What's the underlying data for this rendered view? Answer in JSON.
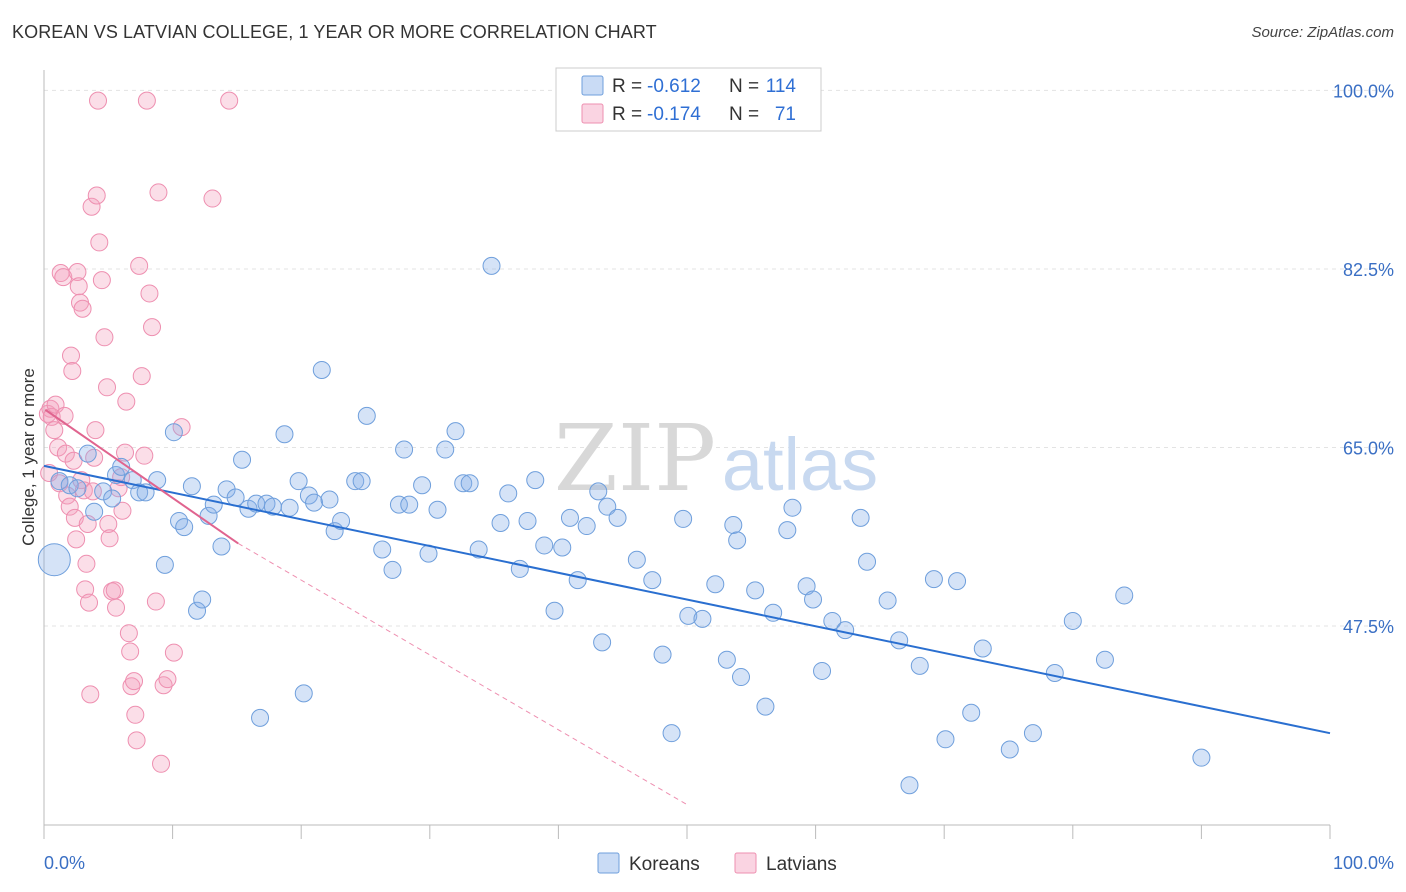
{
  "title": "KOREAN VS LATVIAN COLLEGE, 1 YEAR OR MORE CORRELATION CHART",
  "source": "Source: ZipAtlas.com",
  "watermark": {
    "zip": "ZIP",
    "atlas": "atlas"
  },
  "colors": {
    "koreans_fill": "rgba(135,176,232,0.35)",
    "koreans_stroke": "#6f9fdc",
    "koreans_line": "#2a6fd0",
    "latvians_fill": "rgba(244,160,190,0.35)",
    "latvians_stroke": "#ee8fb0",
    "latvians_line": "#e0648f",
    "axis_text": "#3a6fc4",
    "grid": "#e3e3e3"
  },
  "legend": {
    "rows": [
      {
        "r_label": "R =",
        "r_value": "-0.612",
        "n_label": "N =",
        "n_value": "114"
      },
      {
        "r_label": "R =",
        "r_value": "-0.174",
        "n_label": "N =",
        "n_value": "71"
      }
    ]
  },
  "chart_data": {
    "type": "scatter",
    "title": "KOREAN VS LATVIAN COLLEGE, 1 YEAR OR MORE CORRELATION CHART",
    "xlabel": "",
    "ylabel": "College, 1 year or more",
    "xlim": [
      0,
      100
    ],
    "ylim": [
      28,
      102
    ],
    "x_tick_labels": [
      "0.0%",
      "100.0%"
    ],
    "y_ticks": [
      47.5,
      65.0,
      82.5,
      100.0
    ],
    "y_tick_labels": [
      "47.5%",
      "65.0%",
      "82.5%",
      "100.0%"
    ],
    "grid": true,
    "legend_position": "bottom-center",
    "series": [
      {
        "name": "Koreans",
        "r": -0.612,
        "n": 114,
        "trend": {
          "x": [
            0,
            100
          ],
          "y": [
            63.2,
            37.0
          ]
        },
        "points": [
          [
            0.8,
            54.0
          ],
          [
            1.2,
            61.7
          ],
          [
            2.0,
            61.3
          ],
          [
            2.6,
            61.0
          ],
          [
            3.4,
            64.4
          ],
          [
            3.9,
            58.7
          ],
          [
            4.6,
            60.7
          ],
          [
            5.3,
            60.0
          ],
          [
            5.6,
            62.3
          ],
          [
            6.0,
            63.1
          ],
          [
            6.9,
            61.8
          ],
          [
            7.4,
            60.6
          ],
          [
            7.9,
            60.6
          ],
          [
            8.8,
            61.8
          ],
          [
            9.4,
            53.5
          ],
          [
            10.1,
            66.5
          ],
          [
            10.5,
            57.8
          ],
          [
            10.9,
            57.2
          ],
          [
            11.5,
            61.2
          ],
          [
            11.9,
            49.0
          ],
          [
            12.3,
            50.1
          ],
          [
            12.8,
            58.3
          ],
          [
            13.2,
            59.4
          ],
          [
            13.8,
            55.3
          ],
          [
            14.2,
            60.9
          ],
          [
            14.9,
            60.1
          ],
          [
            15.4,
            63.8
          ],
          [
            15.9,
            59.0
          ],
          [
            16.5,
            59.5
          ],
          [
            16.8,
            38.5
          ],
          [
            17.3,
            59.5
          ],
          [
            17.8,
            59.2
          ],
          [
            18.7,
            66.3
          ],
          [
            19.1,
            59.1
          ],
          [
            19.8,
            61.7
          ],
          [
            20.2,
            40.9
          ],
          [
            20.6,
            60.3
          ],
          [
            21.0,
            59.6
          ],
          [
            21.6,
            72.6
          ],
          [
            22.2,
            59.9
          ],
          [
            22.6,
            56.8
          ],
          [
            23.1,
            57.8
          ],
          [
            24.2,
            61.7
          ],
          [
            24.7,
            61.7
          ],
          [
            25.1,
            68.1
          ],
          [
            26.3,
            55.0
          ],
          [
            27.1,
            53.0
          ],
          [
            27.6,
            59.4
          ],
          [
            28.0,
            64.8
          ],
          [
            28.4,
            59.4
          ],
          [
            29.4,
            61.3
          ],
          [
            29.9,
            54.6
          ],
          [
            30.6,
            58.9
          ],
          [
            31.2,
            64.8
          ],
          [
            32.0,
            66.6
          ],
          [
            32.6,
            61.5
          ],
          [
            33.1,
            61.5
          ],
          [
            33.8,
            55.0
          ],
          [
            34.8,
            82.8
          ],
          [
            35.5,
            57.6
          ],
          [
            36.1,
            60.5
          ],
          [
            37.0,
            53.1
          ],
          [
            37.6,
            57.8
          ],
          [
            38.2,
            61.8
          ],
          [
            38.9,
            55.4
          ],
          [
            39.7,
            49.0
          ],
          [
            40.3,
            55.2
          ],
          [
            40.9,
            58.1
          ],
          [
            41.5,
            52.0
          ],
          [
            42.2,
            57.3
          ],
          [
            43.1,
            60.7
          ],
          [
            43.4,
            45.9
          ],
          [
            43.8,
            59.2
          ],
          [
            44.6,
            58.1
          ],
          [
            46.1,
            54.0
          ],
          [
            47.3,
            52.0
          ],
          [
            48.1,
            44.7
          ],
          [
            48.8,
            37.0
          ],
          [
            49.7,
            58.0
          ],
          [
            50.1,
            48.5
          ],
          [
            51.2,
            48.2
          ],
          [
            52.2,
            51.6
          ],
          [
            53.1,
            44.2
          ],
          [
            53.6,
            57.4
          ],
          [
            53.9,
            55.9
          ],
          [
            54.2,
            42.5
          ],
          [
            55.3,
            51.0
          ],
          [
            56.1,
            39.6
          ],
          [
            56.7,
            48.8
          ],
          [
            57.8,
            56.9
          ],
          [
            58.2,
            59.1
          ],
          [
            59.3,
            51.4
          ],
          [
            59.8,
            50.1
          ],
          [
            60.5,
            43.1
          ],
          [
            61.3,
            48.0
          ],
          [
            62.3,
            47.1
          ],
          [
            63.5,
            58.1
          ],
          [
            64.0,
            53.8
          ],
          [
            65.6,
            50.0
          ],
          [
            66.5,
            46.1
          ],
          [
            67.3,
            31.9
          ],
          [
            68.1,
            43.6
          ],
          [
            69.2,
            52.1
          ],
          [
            70.1,
            36.4
          ],
          [
            71.0,
            51.9
          ],
          [
            72.1,
            39.0
          ],
          [
            73.0,
            45.3
          ],
          [
            75.1,
            35.4
          ],
          [
            76.9,
            37.0
          ],
          [
            78.6,
            42.9
          ],
          [
            80.0,
            48.0
          ],
          [
            82.5,
            44.2
          ],
          [
            84.0,
            50.5
          ],
          [
            90.0,
            34.6
          ]
        ]
      },
      {
        "name": "Latvians",
        "r": -0.174,
        "n": 71,
        "trend": {
          "x": [
            0.1,
            15.1
          ],
          "y": [
            68.7,
            55.6
          ]
        },
        "trend_dashed": {
          "x": [
            15.1,
            50.0
          ],
          "y": [
            55.6,
            30.0
          ]
        },
        "points": [
          [
            0.3,
            68.3
          ],
          [
            0.4,
            62.5
          ],
          [
            0.5,
            68.8
          ],
          [
            0.6,
            68.0
          ],
          [
            0.8,
            66.7
          ],
          [
            0.9,
            69.2
          ],
          [
            1.1,
            65.0
          ],
          [
            1.2,
            61.5
          ],
          [
            1.3,
            82.1
          ],
          [
            1.5,
            81.7
          ],
          [
            1.6,
            68.1
          ],
          [
            1.7,
            64.4
          ],
          [
            1.8,
            60.3
          ],
          [
            2.0,
            59.2
          ],
          [
            2.1,
            74.0
          ],
          [
            2.2,
            72.5
          ],
          [
            2.3,
            63.7
          ],
          [
            2.4,
            58.1
          ],
          [
            2.5,
            56.0
          ],
          [
            2.6,
            82.2
          ],
          [
            2.7,
            80.8
          ],
          [
            2.8,
            79.2
          ],
          [
            2.9,
            61.8
          ],
          [
            3.0,
            78.6
          ],
          [
            3.1,
            60.8
          ],
          [
            3.2,
            51.1
          ],
          [
            3.3,
            53.6
          ],
          [
            3.4,
            57.5
          ],
          [
            3.5,
            49.8
          ],
          [
            3.6,
            40.8
          ],
          [
            3.7,
            88.6
          ],
          [
            3.8,
            60.7
          ],
          [
            3.9,
            64.0
          ],
          [
            4.0,
            66.7
          ],
          [
            4.1,
            89.7
          ],
          [
            4.2,
            99.0
          ],
          [
            4.3,
            85.1
          ],
          [
            4.5,
            81.4
          ],
          [
            4.7,
            75.8
          ],
          [
            4.9,
            70.9
          ],
          [
            5.0,
            57.5
          ],
          [
            5.1,
            56.1
          ],
          [
            5.3,
            50.9
          ],
          [
            5.5,
            51.0
          ],
          [
            5.6,
            49.3
          ],
          [
            5.8,
            61.0
          ],
          [
            6.0,
            62.1
          ],
          [
            6.1,
            58.8
          ],
          [
            6.3,
            64.5
          ],
          [
            6.4,
            69.5
          ],
          [
            6.6,
            46.8
          ],
          [
            6.7,
            45.0
          ],
          [
            6.8,
            41.6
          ],
          [
            7.0,
            42.1
          ],
          [
            7.1,
            38.8
          ],
          [
            7.2,
            36.3
          ],
          [
            7.4,
            82.8
          ],
          [
            7.6,
            72.0
          ],
          [
            7.8,
            64.2
          ],
          [
            8.0,
            99.0
          ],
          [
            8.2,
            80.1
          ],
          [
            8.4,
            76.8
          ],
          [
            8.7,
            49.9
          ],
          [
            8.9,
            90.0
          ],
          [
            9.1,
            34.0
          ],
          [
            9.3,
            41.7
          ],
          [
            9.6,
            42.3
          ],
          [
            10.1,
            44.9
          ],
          [
            10.7,
            67.0
          ],
          [
            13.1,
            89.4
          ],
          [
            14.4,
            99.0
          ]
        ]
      }
    ]
  },
  "bottom_legend": {
    "koreans": "Koreans",
    "latvians": "Latvians"
  }
}
